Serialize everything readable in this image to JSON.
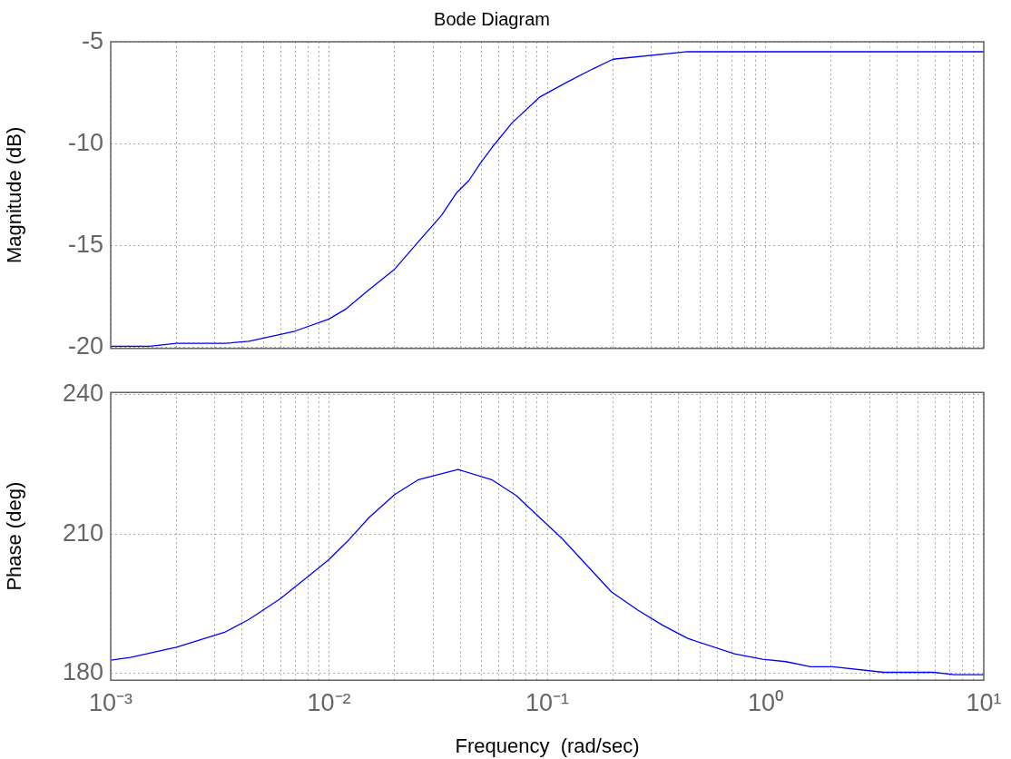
{
  "chart_data": [
    {
      "type": "line",
      "title": "Bode Diagram",
      "ylabel": "Magnitude (dB)",
      "log": "x",
      "grid": true,
      "tick_labels": "y",
      "marker": "none",
      "line_style": "solid",
      "xlim": [
        0.001,
        10
      ],
      "ylim": [
        -20.05,
        -4.97
      ],
      "yticks": [
        -20,
        -15,
        -10,
        -5
      ],
      "xticks": [
        {
          "value": 0.001,
          "label": null
        },
        {
          "value": 0.002,
          "label": null
        },
        {
          "value": 0.003,
          "label": null
        },
        {
          "value": 0.004,
          "label": null
        },
        {
          "value": 0.005,
          "label": null
        },
        {
          "value": 0.006,
          "label": null
        },
        {
          "value": 0.007,
          "label": null
        },
        {
          "value": 0.008,
          "label": null
        },
        {
          "value": 0.009,
          "label": null
        },
        {
          "value": 0.01,
          "label": null
        },
        {
          "value": 0.02,
          "label": null
        },
        {
          "value": 0.03,
          "label": null
        },
        {
          "value": 0.04,
          "label": null
        },
        {
          "value": 0.05,
          "label": null
        },
        {
          "value": 0.06,
          "label": null
        },
        {
          "value": 0.07,
          "label": null
        },
        {
          "value": 0.08,
          "label": null
        },
        {
          "value": 0.09,
          "label": null
        },
        {
          "value": 0.1,
          "label": null
        },
        {
          "value": 0.2,
          "label": null
        },
        {
          "value": 0.3,
          "label": null
        },
        {
          "value": 0.4,
          "label": null
        },
        {
          "value": 0.5,
          "label": null
        },
        {
          "value": 0.6,
          "label": null
        },
        {
          "value": 0.7,
          "label": null
        },
        {
          "value": 0.8,
          "label": null
        },
        {
          "value": 0.9,
          "label": null
        },
        {
          "value": 1,
          "label": null
        },
        {
          "value": 2,
          "label": null
        },
        {
          "value": 3,
          "label": null
        },
        {
          "value": 4,
          "label": null
        },
        {
          "value": 5,
          "label": null
        },
        {
          "value": 6,
          "label": null
        },
        {
          "value": 7,
          "label": null
        },
        {
          "value": 8,
          "label": null
        },
        {
          "value": 9,
          "label": null
        },
        {
          "value": 10,
          "label": null
        }
      ],
      "x": [
        0.001,
        0.00151,
        0.002,
        0.00335,
        0.0043,
        0.00698,
        0.01,
        0.012,
        0.0151,
        0.02,
        0.0257,
        0.0328,
        0.0384,
        0.0437,
        0.0497,
        0.056,
        0.069,
        0.092,
        0.124,
        0.162,
        0.2,
        0.439,
        10
      ],
      "series": [
        {
          "color": "#0000ff",
          "values": [
            -19.94,
            -19.94,
            -19.8,
            -19.8,
            -19.7,
            -19.2,
            -18.6,
            -18.1,
            -17.2,
            -16.15,
            -14.8,
            -13.5,
            -12.4,
            -11.8,
            -10.9,
            -10.15,
            -8.96,
            -7.7,
            -6.94,
            -6.3,
            -5.83,
            -5.46,
            -5.46
          ]
        }
      ]
    },
    {
      "type": "line",
      "ylabel": "Phase (deg)",
      "xlabel": "Frequency  (rad/sec)",
      "log": "x",
      "grid": true,
      "marker": "none",
      "line_style": "solid",
      "xlim": [
        0.001,
        10
      ],
      "ylim": [
        178.5,
        240.5
      ],
      "yticks": [
        180,
        210,
        240
      ],
      "xticks": [
        {
          "value": 0.001,
          "label": "10⁻³"
        },
        {
          "value": 0.002,
          "label": null
        },
        {
          "value": 0.003,
          "label": null
        },
        {
          "value": 0.004,
          "label": null
        },
        {
          "value": 0.005,
          "label": null
        },
        {
          "value": 0.006,
          "label": null
        },
        {
          "value": 0.007,
          "label": null
        },
        {
          "value": 0.008,
          "label": null
        },
        {
          "value": 0.009,
          "label": null
        },
        {
          "value": 0.01,
          "label": "10⁻²"
        },
        {
          "value": 0.02,
          "label": null
        },
        {
          "value": 0.03,
          "label": null
        },
        {
          "value": 0.04,
          "label": null
        },
        {
          "value": 0.05,
          "label": null
        },
        {
          "value": 0.06,
          "label": null
        },
        {
          "value": 0.07,
          "label": null
        },
        {
          "value": 0.08,
          "label": null
        },
        {
          "value": 0.09,
          "label": null
        },
        {
          "value": 0.1,
          "label": "10⁻¹"
        },
        {
          "value": 0.2,
          "label": null
        },
        {
          "value": 0.3,
          "label": null
        },
        {
          "value": 0.4,
          "label": null
        },
        {
          "value": 0.5,
          "label": null
        },
        {
          "value": 0.6,
          "label": null
        },
        {
          "value": 0.7,
          "label": null
        },
        {
          "value": 0.8,
          "label": null
        },
        {
          "value": 0.9,
          "label": null
        },
        {
          "value": 1,
          "label": "10⁰"
        },
        {
          "value": 2,
          "label": null
        },
        {
          "value": 3,
          "label": null
        },
        {
          "value": 4,
          "label": null
        },
        {
          "value": 5,
          "label": null
        },
        {
          "value": 6,
          "label": null
        },
        {
          "value": 7,
          "label": null
        },
        {
          "value": 8,
          "label": null
        },
        {
          "value": 9,
          "label": null
        },
        {
          "value": 10,
          "label": "10¹"
        }
      ],
      "x": [
        0.001,
        0.00123,
        0.002,
        0.00335,
        0.0043,
        0.00596,
        0.0079,
        0.01,
        0.0122,
        0.0153,
        0.02,
        0.0257,
        0.039,
        0.0556,
        0.072,
        0.117,
        0.197,
        0.26,
        0.339,
        0.44,
        0.72,
        0.97,
        1.24,
        1.61,
        2.03,
        3.48,
        5.9,
        7.3,
        10
      ],
      "series": [
        {
          "color": "#0000ff",
          "values": [
            182.8,
            183.4,
            185.6,
            188.9,
            191.6,
            196.0,
            200.6,
            204.5,
            208.5,
            213.6,
            218.5,
            221.7,
            223.9,
            221.7,
            218.3,
            209.0,
            197.5,
            193.6,
            190.3,
            187.5,
            184.2,
            183.0,
            182.5,
            181.4,
            181.4,
            180.2,
            180.2,
            179.7,
            179.7
          ]
        }
      ]
    }
  ]
}
